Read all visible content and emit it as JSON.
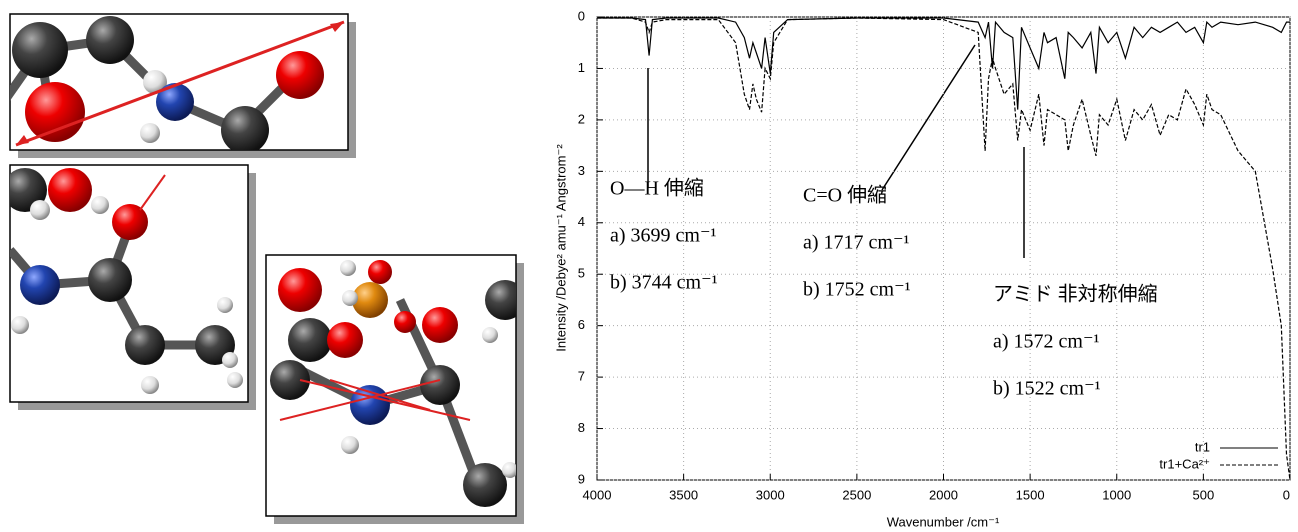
{
  "chart_data": {
    "type": "line",
    "ylabel": "Intensity /Debye² amu⁻¹ Angstrom⁻²",
    "xlabel": "Wavenumber /cm⁻¹",
    "x": [
      4000,
      3800,
      3720,
      3699,
      3680,
      3600,
      3300,
      3200,
      3150,
      3120,
      3100,
      3080,
      3050,
      3030,
      3000,
      2980,
      2900,
      2500,
      2000,
      1800,
      1760,
      1740,
      1717,
      1700,
      1650,
      1600,
      1572,
      1550,
      1500,
      1450,
      1420,
      1400,
      1350,
      1300,
      1280,
      1250,
      1200,
      1150,
      1120,
      1100,
      1050,
      1000,
      950,
      900,
      850,
      800,
      750,
      700,
      650,
      600,
      550,
      500,
      480,
      450,
      400,
      300,
      200,
      100,
      50,
      20,
      0
    ],
    "series": [
      {
        "name": "tr1",
        "color": "#000000",
        "linestyle": "solid",
        "values": [
          0.02,
          0.02,
          0.05,
          0.75,
          0.05,
          0.02,
          0.02,
          0.1,
          0.4,
          0.8,
          0.5,
          0.7,
          1.0,
          0.4,
          1.1,
          0.3,
          0.05,
          0.02,
          0.02,
          0.1,
          0.4,
          0.1,
          1.0,
          0.1,
          0.3,
          0.4,
          1.8,
          0.2,
          0.6,
          1.0,
          0.3,
          0.5,
          0.4,
          1.2,
          0.3,
          0.4,
          0.6,
          0.3,
          1.1,
          0.2,
          0.5,
          0.3,
          0.8,
          0.2,
          0.4,
          0.2,
          0.3,
          0.2,
          0.1,
          0.3,
          0.2,
          0.5,
          0.1,
          0.2,
          0.1,
          0.15,
          0.1,
          0.2,
          0.3,
          0.1,
          0.1
        ]
      },
      {
        "name": "tr1+Ca²⁺",
        "color": "#000000",
        "linestyle": "dashed",
        "values": [
          0.02,
          0.02,
          0.1,
          0.3,
          0.1,
          0.05,
          0.05,
          0.5,
          1.5,
          1.8,
          1.3,
          1.6,
          1.85,
          1.0,
          1.2,
          0.5,
          0.05,
          0.02,
          0.05,
          0.3,
          2.6,
          1.2,
          0.8,
          1.0,
          1.5,
          1.3,
          2.4,
          1.8,
          2.2,
          1.5,
          2.5,
          1.8,
          1.9,
          2.0,
          2.6,
          2.1,
          1.6,
          2.3,
          2.7,
          1.9,
          2.1,
          1.6,
          2.4,
          1.8,
          2.0,
          1.7,
          2.3,
          1.9,
          2.0,
          1.4,
          1.7,
          2.1,
          1.5,
          1.8,
          1.9,
          2.6,
          3.0,
          4.9,
          6.0,
          8.5,
          9.0
        ]
      }
    ],
    "xlim": [
      4000,
      0
    ],
    "xticks": [
      4000,
      3500,
      3000,
      2500,
      2000,
      1500,
      1000,
      500,
      0
    ],
    "ylim": [
      0,
      9
    ],
    "yticks": [
      0,
      1,
      2,
      3,
      4,
      5,
      6,
      7,
      8,
      9
    ],
    "y_inverted": true,
    "grid": true,
    "legend": "lower right",
    "annotations": [
      {
        "title": "O—H 伸縮",
        "lines": [
          "a) 3699 cm⁻¹",
          "b) 3744 cm⁻¹"
        ]
      },
      {
        "title": "C=O 伸縮",
        "lines": [
          "a) 1717 cm⁻¹",
          "b) 1752 cm⁻¹"
        ]
      },
      {
        "title": "アミド 非対称伸縮",
        "lines": [
          "a) 1572 cm⁻¹",
          "b) 1522 cm⁻¹"
        ]
      }
    ]
  }
}
